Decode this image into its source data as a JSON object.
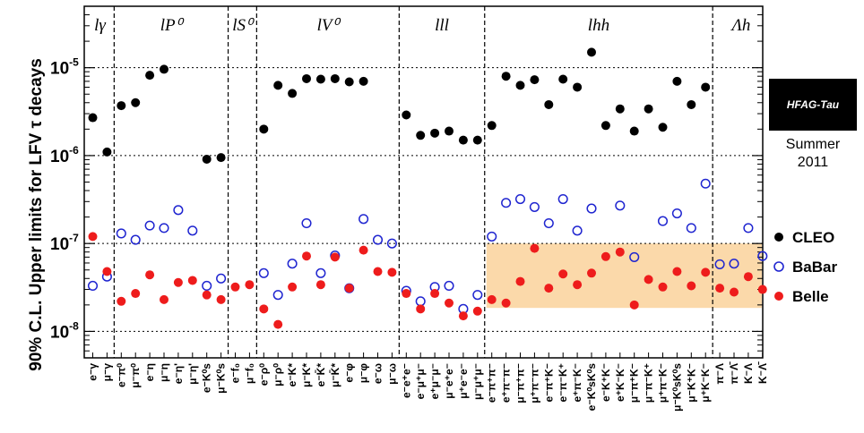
{
  "badge": {
    "title": "HFAG-Tau",
    "line1": "Summer",
    "line2": "2011"
  },
  "chart_data": {
    "type": "scatter",
    "ylabel": "90% C.L. Upper limits for LFV τ decays",
    "yscale": "log",
    "ylim": [
      5e-09,
      5e-05
    ],
    "yticks": [
      {
        "value": 1e-08,
        "base": "10",
        "exp": "-8"
      },
      {
        "value": 1e-07,
        "base": "10",
        "exp": "-7"
      },
      {
        "value": 1e-06,
        "base": "10",
        "exp": "-6"
      },
      {
        "value": 1e-05,
        "base": "10",
        "exp": "-5"
      }
    ],
    "grid": true,
    "legend_position": "right",
    "groups": [
      {
        "label": "lγ",
        "start": 1,
        "end": 2
      },
      {
        "label": "lP⁰",
        "start": 3,
        "end": 10
      },
      {
        "label": "lS⁰",
        "start": 11,
        "end": 12
      },
      {
        "label": "lV⁰",
        "start": 13,
        "end": 22
      },
      {
        "label": "lll",
        "start": 23,
        "end": 28
      },
      {
        "label": "lhh",
        "start": 29,
        "end": 44
      },
      {
        "label": "Λh",
        "start": 45,
        "end": 48
      }
    ],
    "highlight": {
      "x_start": 29,
      "x_end": 48,
      "y_min": 1.85e-08,
      "y_max": 1e-07,
      "color": "#fbd9aa"
    },
    "categories": [
      "e⁻γ",
      "μ⁻γ",
      "e⁻π⁰",
      "μ⁻π⁰",
      "e⁻η",
      "μ⁻η",
      "e⁻η'",
      "μ⁻η'",
      "e⁻K⁰s",
      "μ⁻K⁰s",
      "e⁻f₀",
      "μ⁻f₀",
      "e⁻ρ⁰",
      "μ⁻ρ⁰",
      "e⁻K*",
      "μ⁻K*",
      "e⁻K̄*",
      "μ⁻K̄*",
      "e⁻φ",
      "μ⁻φ",
      "e⁻ω",
      "μ⁻ω",
      "e⁻e⁺e⁻",
      "e⁻μ⁺μ⁻",
      "e⁺μ⁻μ⁻",
      "μ⁻e⁺e⁻",
      "μ⁺e⁻e⁻",
      "μ⁻μ⁺μ⁻",
      "e⁻π⁺π⁻",
      "e⁺π⁻π⁻",
      "μ⁻π⁺π⁻",
      "μ⁺π⁻π⁻",
      "e⁻π⁺K⁻",
      "e⁻π⁻K⁺",
      "e⁺π⁻K⁻",
      "e⁻K⁰sK⁰s",
      "e⁻K⁺K⁻",
      "e⁺K⁻K⁻",
      "μ⁻π⁺K⁻",
      "μ⁻π⁻K⁺",
      "μ⁺π⁻K⁻",
      "μ⁻K⁰sK⁰s",
      "μ⁻K⁺K⁻",
      "μ⁺K⁻K⁻",
      "π⁻Λ",
      "π⁻Λ̄",
      "K⁻Λ",
      "K⁻Λ̄"
    ],
    "series": [
      {
        "name": "CLEO",
        "color": "#000000",
        "marker": "filled",
        "values": [
          2.7e-06,
          1.1e-06,
          3.7e-06,
          4e-06,
          8.2e-06,
          9.6e-06,
          null,
          null,
          9.1e-07,
          9.5e-07,
          null,
          null,
          2e-06,
          6.3e-06,
          5.1e-06,
          7.5e-06,
          7.4e-06,
          7.5e-06,
          6.9e-06,
          7e-06,
          null,
          null,
          2.9e-06,
          1.7e-06,
          1.8e-06,
          1.9e-06,
          1.5e-06,
          1.5e-06,
          2.2e-06,
          8e-06,
          6.3e-06,
          7.3e-06,
          3.8e-06,
          7.4e-06,
          6e-06,
          1.5e-05,
          2.2e-06,
          3.4e-06,
          1.9e-06,
          3.4e-06,
          2.1e-06,
          7e-06,
          3.8e-06,
          6e-06,
          null,
          null,
          null,
          null
        ]
      },
      {
        "name": "BaBar",
        "color": "#1f25d0",
        "marker": "open",
        "values": [
          3.3e-08,
          4.2e-08,
          1.3e-07,
          1.1e-07,
          1.6e-07,
          1.5e-07,
          2.4e-07,
          1.4e-07,
          3.3e-08,
          4e-08,
          null,
          null,
          4.6e-08,
          2.6e-08,
          5.9e-08,
          1.7e-07,
          4.6e-08,
          7.3e-08,
          3.1e-08,
          1.9e-07,
          1.1e-07,
          1e-07,
          2.9e-08,
          2.2e-08,
          3.2e-08,
          3.3e-08,
          1.8e-08,
          2.6e-08,
          1.2e-07,
          2.9e-07,
          3.2e-07,
          2.6e-07,
          1.7e-07,
          3.2e-07,
          1.4e-07,
          2.5e-07,
          null,
          2.7e-07,
          7e-08,
          null,
          1.8e-07,
          2.2e-07,
          1.5e-07,
          4.8e-07,
          5.8e-08,
          5.9e-08,
          1.5e-07,
          7.2e-08
        ]
      },
      {
        "name": "Belle",
        "color": "#ee1c1c",
        "marker": "filled",
        "values": [
          1.2e-07,
          4.8e-08,
          2.2e-08,
          2.7e-08,
          4.4e-08,
          2.3e-08,
          3.6e-08,
          3.8e-08,
          2.6e-08,
          2.3e-08,
          3.2e-08,
          3.4e-08,
          1.8e-08,
          1.2e-08,
          3.2e-08,
          7.2e-08,
          3.4e-08,
          7e-08,
          3.1e-08,
          8.4e-08,
          4.8e-08,
          4.7e-08,
          2.7e-08,
          1.8e-08,
          2.7e-08,
          2.1e-08,
          1.5e-08,
          1.7e-08,
          2.3e-08,
          2.1e-08,
          3.7e-08,
          8.8e-08,
          3.1e-08,
          4.5e-08,
          3.4e-08,
          4.6e-08,
          7.1e-08,
          8e-08,
          2e-08,
          3.9e-08,
          3.2e-08,
          4.8e-08,
          3.3e-08,
          4.7e-08,
          3.1e-08,
          2.8e-08,
          4.2e-08,
          3e-08
        ]
      }
    ]
  }
}
